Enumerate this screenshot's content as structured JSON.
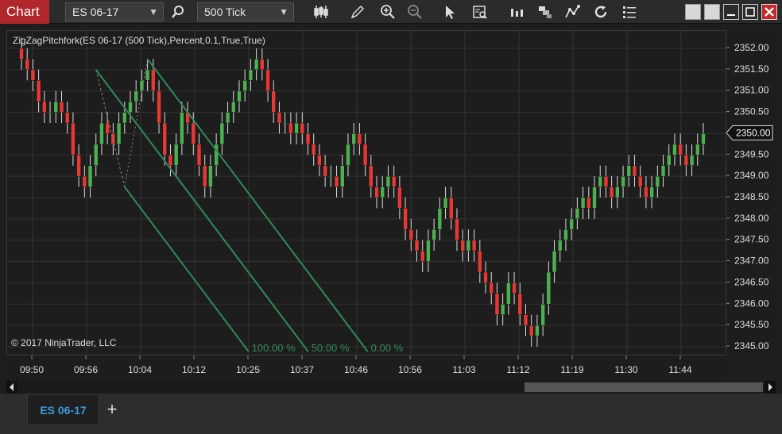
{
  "toolbar": {
    "title": "Chart",
    "instrument": "ES 06-17",
    "interval": "500 Tick",
    "colors": {
      "title_bg": "#b0282b",
      "up": "#4caf50",
      "down": "#e53935",
      "pitchfork": "#2e8b57"
    }
  },
  "chart": {
    "indicator_label": "ZigZagPitchfork(ES 06-17 (500 Tick),Percent,0.1,True,True)",
    "copyright": "© 2017 NinjaTrader, LLC",
    "price_ticks": [
      "2352.00",
      "2351.50",
      "2351.00",
      "2350.50",
      "2350.00",
      "2349.50",
      "2349.00",
      "2348.50",
      "2348.00",
      "2347.50",
      "2347.00",
      "2346.50",
      "2346.00",
      "2345.50",
      "2345.00"
    ],
    "current_price": "2350.00",
    "time_ticks": [
      "09:50",
      "09:56",
      "10:04",
      "10:12",
      "10:25",
      "10:37",
      "10:46",
      "10:56",
      "11:03",
      "11:12",
      "11:19",
      "11:30",
      "11:44"
    ],
    "fork_labels": [
      "100.00 %",
      "50.00 %",
      "0.00 %"
    ]
  },
  "tabs": {
    "active": "ES 06-17",
    "add": "+"
  },
  "chart_data": {
    "type": "candlestick",
    "instrument": "ES 06-17",
    "ylim": [
      2345.0,
      2352.0
    ],
    "closes": [
      2351.75,
      2351.5,
      2351.25,
      2350.75,
      2350.5,
      2350.5,
      2350.75,
      2350.5,
      2350.25,
      2349.5,
      2349.0,
      2348.75,
      2349.25,
      2349.75,
      2350.25,
      2350.0,
      2349.75,
      2350.25,
      2350.5,
      2350.75,
      2351.0,
      2351.25,
      2351.5,
      2351.0,
      2350.25,
      2349.5,
      2349.25,
      2349.75,
      2350.5,
      2350.25,
      2349.75,
      2349.25,
      2348.75,
      2349.25,
      2349.75,
      2350.25,
      2350.5,
      2350.75,
      2351.0,
      2351.25,
      2351.5,
      2351.75,
      2351.5,
      2351.0,
      2350.5,
      2350.25,
      2350.25,
      2350.0,
      2350.25,
      2350.0,
      2349.75,
      2349.5,
      2349.25,
      2349.0,
      2349.0,
      2348.75,
      2349.25,
      2349.75,
      2350.0,
      2349.75,
      2349.25,
      2348.75,
      2348.5,
      2348.75,
      2349.0,
      2348.75,
      2348.25,
      2347.75,
      2347.5,
      2347.25,
      2347.0,
      2347.5,
      2347.75,
      2348.25,
      2348.5,
      2348.0,
      2347.5,
      2347.25,
      2347.5,
      2347.25,
      2346.75,
      2346.5,
      2346.25,
      2345.75,
      2346.0,
      2346.5,
      2346.25,
      2345.75,
      2345.5,
      2345.25,
      2345.5,
      2346.0,
      2346.75,
      2347.25,
      2347.5,
      2347.75,
      2348.0,
      2348.25,
      2348.5,
      2348.25,
      2348.75,
      2349.0,
      2348.75,
      2348.5,
      2348.75,
      2349.0,
      2349.25,
      2349.0,
      2348.75,
      2348.5,
      2348.75,
      2349.0,
      2349.25,
      2349.5,
      2349.75,
      2349.5,
      2349.25,
      2349.5,
      2349.75,
      2350.0
    ]
  }
}
